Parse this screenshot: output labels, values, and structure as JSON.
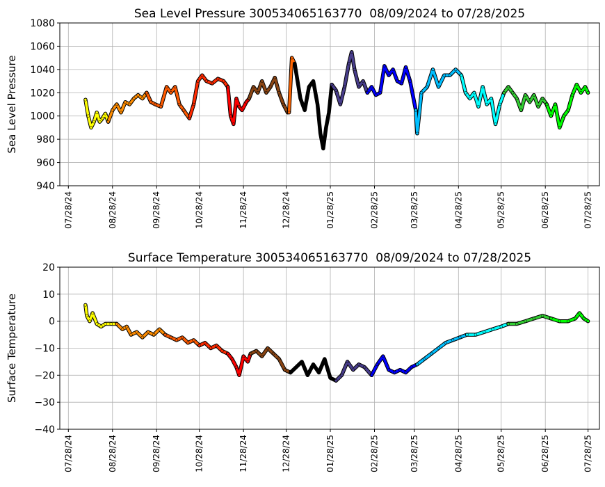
{
  "chart_data": [
    {
      "type": "scatter",
      "title": "Sea Level Pressure 300534065163770  08/09/2024 to 07/28/2025",
      "ylabel": "Sea Level Pressure",
      "xlabel": "",
      "ylim": [
        940,
        1080
      ],
      "yticks": [
        940,
        960,
        980,
        1000,
        1020,
        1040,
        1060,
        1080
      ],
      "xlim": [
        "07/22/24",
        "08/05/25"
      ],
      "xticks": [
        "07/28/24",
        "08/28/24",
        "09/28/24",
        "10/28/24",
        "11/28/24",
        "12/28/24",
        "01/28/25",
        "02/28/25",
        "03/28/25",
        "04/28/25",
        "05/28/25",
        "06/28/25",
        "07/28/25"
      ],
      "grid": true,
      "series": [
        {
          "color": "#ffff00",
          "x": [
            "08/09/24",
            "08/11/24",
            "08/13/24",
            "08/15/24",
            "08/17/24",
            "08/19/24",
            "08/21/24",
            "08/23/24",
            "08/25/24"
          ],
          "y": [
            1014,
            1000,
            990,
            995,
            1003,
            995,
            998,
            1002,
            995
          ]
        },
        {
          "color": "#ff8c00",
          "x": [
            "08/25/24",
            "08/28/24",
            "08/31/24",
            "09/03/24",
            "09/06/24",
            "09/09/24",
            "09/12/24",
            "09/15/24",
            "09/18/24",
            "09/21/24"
          ],
          "y": [
            995,
            1005,
            1010,
            1003,
            1012,
            1010,
            1015,
            1018,
            1015,
            1020
          ]
        },
        {
          "color": "#ff5a00",
          "x": [
            "09/21/24",
            "09/24/24",
            "09/27/24",
            "10/01/24",
            "10/05/24",
            "10/08/24",
            "10/11/24",
            "10/14/24",
            "10/17/24",
            "10/21/24"
          ],
          "y": [
            1020,
            1012,
            1010,
            1008,
            1025,
            1020,
            1025,
            1010,
            1005,
            998
          ]
        },
        {
          "color": "#ff2a00",
          "x": [
            "10/21/24",
            "10/24/24",
            "10/27/24",
            "10/30/24",
            "11/02/24",
            "11/06/24",
            "11/10/24",
            "11/14/24",
            "11/17/24"
          ],
          "y": [
            998,
            1010,
            1030,
            1035,
            1030,
            1028,
            1032,
            1030,
            1025
          ]
        },
        {
          "color": "#ff0000",
          "x": [
            "11/17/24",
            "11/19/24",
            "11/21/24",
            "11/23/24",
            "11/25/24",
            "11/27/24",
            "11/30/24",
            "12/02/24"
          ],
          "y": [
            1025,
            1000,
            993,
            1015,
            1008,
            1005,
            1012,
            1015
          ]
        },
        {
          "color": "#8b4513",
          "x": [
            "12/02/24",
            "12/05/24",
            "12/08/24",
            "12/11/24",
            "12/14/24",
            "12/17/24",
            "12/20/24",
            "12/23/24",
            "12/26/24",
            "12/29/24"
          ],
          "y": [
            1015,
            1025,
            1020,
            1030,
            1020,
            1025,
            1033,
            1020,
            1010,
            1003
          ]
        },
        {
          "color": "#ff6400",
          "x": [
            "12/30/24",
            "01/01/25",
            "01/03/25"
          ],
          "y": [
            1003,
            1050,
            1045
          ]
        },
        {
          "color": "#000000",
          "x": [
            "01/03/25",
            "01/05/25",
            "01/07/25",
            "01/10/25",
            "01/13/25",
            "01/16/25",
            "01/19/25",
            "01/21/25",
            "01/23/25",
            "01/25/25",
            "01/27/25",
            "01/29/25"
          ],
          "y": [
            1045,
            1030,
            1015,
            1005,
            1025,
            1030,
            1010,
            985,
            972,
            990,
            1003,
            1027
          ]
        },
        {
          "color": "#483d8b",
          "x": [
            "01/29/25",
            "02/01/25",
            "02/04/25",
            "02/07/25",
            "02/10/25",
            "02/12/25",
            "02/14/25",
            "02/17/25",
            "02/20/25",
            "02/23/25"
          ],
          "y": [
            1027,
            1022,
            1010,
            1025,
            1045,
            1055,
            1040,
            1025,
            1030,
            1020
          ]
        },
        {
          "color": "#0000ff",
          "x": [
            "02/23/25",
            "02/26/25",
            "03/01/25",
            "03/04/25",
            "03/07/25",
            "03/10/25",
            "03/13/25",
            "03/16/25",
            "03/19/25",
            "03/22/25",
            "03/25/25",
            "03/29/25"
          ],
          "y": [
            1020,
            1025,
            1018,
            1020,
            1043,
            1035,
            1040,
            1030,
            1028,
            1042,
            1030,
            1005
          ]
        },
        {
          "color": "#00bfff",
          "x": [
            "03/29/25",
            "03/30/25",
            "04/02/25",
            "04/06/25",
            "04/10/25",
            "04/14/25",
            "04/18/25",
            "04/22/25",
            "04/26/25",
            "04/30/25"
          ],
          "y": [
            1005,
            985,
            1020,
            1025,
            1040,
            1025,
            1035,
            1035,
            1040,
            1035
          ]
        },
        {
          "color": "#00ffff",
          "x": [
            "04/30/25",
            "05/03/25",
            "05/06/25",
            "05/09/25",
            "05/12/25",
            "05/15/25",
            "05/18/25",
            "05/21/25",
            "05/24/25",
            "05/27/25",
            "05/30/25"
          ],
          "y": [
            1035,
            1020,
            1015,
            1020,
            1008,
            1025,
            1010,
            1015,
            993,
            1010,
            1020
          ]
        },
        {
          "color": "#32cd32",
          "x": [
            "05/30/25",
            "06/02/25",
            "06/05/25",
            "06/08/25",
            "06/11/25",
            "06/14/25",
            "06/17/25",
            "06/20/25",
            "06/23/25",
            "06/26/25",
            "06/29/25"
          ],
          "y": [
            1020,
            1025,
            1020,
            1015,
            1005,
            1018,
            1012,
            1018,
            1008,
            1015,
            1010
          ]
        },
        {
          "color": "#00ff00",
          "x": [
            "06/29/25",
            "07/02/25",
            "07/05/25",
            "07/08/25",
            "07/11/25",
            "07/14/25",
            "07/17/25",
            "07/20/25",
            "07/23/25",
            "07/26/25",
            "07/28/25"
          ],
          "y": [
            1010,
            1000,
            1010,
            990,
            1000,
            1005,
            1018,
            1027,
            1020,
            1025,
            1020
          ]
        }
      ]
    },
    {
      "type": "scatter",
      "title": "Surface Temperature 300534065163770  08/09/2024 to 07/28/2025",
      "ylabel": "Surface Temperature",
      "xlabel": "",
      "ylim": [
        -40,
        20
      ],
      "yticks": [
        -40,
        -30,
        -20,
        -10,
        0,
        10,
        20
      ],
      "xlim": [
        "07/22/24",
        "08/05/25"
      ],
      "xticks": [
        "07/28/24",
        "08/28/24",
        "09/28/24",
        "10/28/24",
        "11/28/24",
        "12/28/24",
        "01/28/25",
        "02/28/25",
        "03/28/25",
        "04/28/25",
        "05/28/25",
        "06/28/25",
        "07/28/25"
      ],
      "grid": true,
      "series": [
        {
          "color": "#ffff00",
          "x": [
            "08/09/24",
            "08/10/24",
            "08/12/24",
            "08/14/24",
            "08/17/24",
            "08/20/24",
            "08/23/24",
            "08/27/24",
            "08/31/24"
          ],
          "y": [
            6,
            2,
            0,
            3,
            -1,
            -2,
            -1,
            -1,
            -1
          ]
        },
        {
          "color": "#ff8c00",
          "x": [
            "08/31/24",
            "09/04/24",
            "09/07/24",
            "09/10/24",
            "09/14/24",
            "09/18/24",
            "09/22/24",
            "09/26/24",
            "09/30/24",
            "10/04/24"
          ],
          "y": [
            -1,
            -3,
            -2,
            -5,
            -4,
            -6,
            -4,
            -5,
            -3,
            -5
          ]
        },
        {
          "color": "#ff5a00",
          "x": [
            "10/04/24",
            "10/08/24",
            "10/12/24",
            "10/16/24",
            "10/20/24",
            "10/24/24",
            "10/28/24"
          ],
          "y": [
            -5,
            -6,
            -7,
            -6,
            -8,
            -7,
            -9
          ]
        },
        {
          "color": "#ff2a00",
          "x": [
            "10/28/24",
            "11/01/24",
            "11/05/24",
            "11/09/24",
            "11/13/24",
            "11/17/24"
          ],
          "y": [
            -9,
            -8,
            -10,
            -9,
            -11,
            -12
          ]
        },
        {
          "color": "#ff0000",
          "x": [
            "11/17/24",
            "11/20/24",
            "11/23/24",
            "11/25/24",
            "11/28/24",
            "12/01/24",
            "12/03/24"
          ],
          "y": [
            -12,
            -14,
            -17,
            -20,
            -13,
            -15,
            -12
          ]
        },
        {
          "color": "#8b4513",
          "x": [
            "12/03/24",
            "12/07/24",
            "12/11/24",
            "12/15/24",
            "12/19/24",
            "12/23/24",
            "12/27/24",
            "12/31/24"
          ],
          "y": [
            -12,
            -11,
            -13,
            -10,
            -12,
            -14,
            -18,
            -19
          ]
        },
        {
          "color": "#000000",
          "x": [
            "12/31/24",
            "01/04/25",
            "01/08/25",
            "01/12/25",
            "01/16/25",
            "01/20/25",
            "01/24/25",
            "01/28/25",
            "02/01/25"
          ],
          "y": [
            -19,
            -17,
            -15,
            -20,
            -16,
            -19,
            -14,
            -21,
            -22
          ]
        },
        {
          "color": "#483d8b",
          "x": [
            "02/01/25",
            "02/05/25",
            "02/09/25",
            "02/13/25",
            "02/17/25",
            "02/21/25",
            "02/26/25"
          ],
          "y": [
            -22,
            -20,
            -15,
            -18,
            -16,
            -17,
            -20
          ]
        },
        {
          "color": "#0000ff",
          "x": [
            "02/26/25",
            "03/02/25",
            "03/06/25",
            "03/10/25",
            "03/14/25",
            "03/18/25",
            "03/22/25",
            "03/26/25",
            "03/30/25"
          ],
          "y": [
            -20,
            -16,
            -13,
            -18,
            -19,
            -18,
            -19,
            -17,
            -16
          ]
        },
        {
          "color": "#00bfff",
          "x": [
            "03/30/25",
            "04/04/25",
            "04/09/25",
            "04/14/25",
            "04/19/25",
            "04/24/25",
            "04/29/25",
            "05/04/25"
          ],
          "y": [
            -16,
            -14,
            -12,
            -10,
            -8,
            -7,
            -6,
            -5
          ]
        },
        {
          "color": "#00ffff",
          "x": [
            "05/04/25",
            "05/10/25",
            "05/16/25",
            "05/22/25",
            "05/28/25",
            "06/02/25"
          ],
          "y": [
            -5,
            -5,
            -4,
            -3,
            -2,
            -1
          ]
        },
        {
          "color": "#32cd32",
          "x": [
            "06/02/25",
            "06/08/25",
            "06/14/25",
            "06/20/25",
            "06/26/25",
            "07/02/25"
          ],
          "y": [
            -1,
            -1,
            0,
            1,
            2,
            1
          ]
        },
        {
          "color": "#00ff00",
          "x": [
            "07/02/25",
            "07/08/25",
            "07/14/25",
            "07/19/25",
            "07/22/25",
            "07/25/25",
            "07/28/25"
          ],
          "y": [
            1,
            0,
            0,
            1,
            3,
            1,
            0
          ]
        }
      ]
    }
  ]
}
